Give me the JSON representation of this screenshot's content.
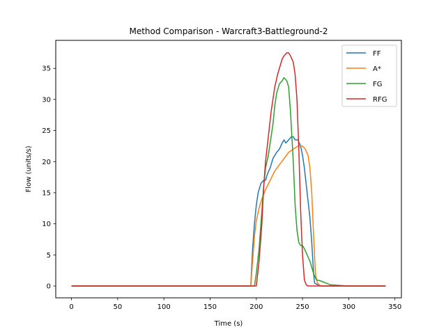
{
  "chart_data": {
    "type": "line",
    "title": "Method Comparison - Warcraft3-Battleground-2",
    "xlabel": "Time (s)",
    "ylabel": "Flow (units/s)",
    "xlim": [
      -17,
      357
    ],
    "ylim": [
      -1.9,
      39.5
    ],
    "xticks": [
      0,
      50,
      100,
      150,
      200,
      250,
      300,
      350
    ],
    "yticks": [
      0,
      5,
      10,
      15,
      20,
      25,
      30,
      35
    ],
    "grid": false,
    "legend_position": "top-right",
    "series": [
      {
        "name": "FF",
        "color": "#1f77b4",
        "x": [
          0,
          194,
          196,
          198,
          200,
          202,
          205,
          208,
          210,
          212,
          215,
          218,
          220,
          222,
          225,
          228,
          230,
          232,
          235,
          238,
          240,
          242,
          245,
          248,
          250,
          252,
          255,
          258,
          260,
          262,
          263,
          265,
          268,
          270,
          300,
          340
        ],
        "y": [
          0,
          0,
          6,
          10,
          13,
          15,
          16.5,
          17,
          17,
          18,
          19,
          20.5,
          21,
          21.5,
          22,
          23,
          23.5,
          23,
          23.5,
          24,
          24,
          23.5,
          23.5,
          22.5,
          21,
          19,
          15,
          11,
          7,
          2,
          0.5,
          0.3,
          0.1,
          0,
          0,
          0
        ]
      },
      {
        "name": "A*",
        "color": "#ff7f0e",
        "x": [
          0,
          194,
          196,
          198,
          200,
          203,
          206,
          210,
          215,
          220,
          225,
          230,
          235,
          240,
          245,
          250,
          253,
          256,
          258,
          260,
          262,
          264,
          266,
          268,
          270,
          280,
          300,
          340
        ],
        "y": [
          0,
          0,
          4,
          8,
          10.5,
          12.5,
          14,
          15.5,
          17,
          18.5,
          19.5,
          20.5,
          21.5,
          22,
          22.5,
          22.5,
          22,
          21,
          19,
          15,
          8,
          2,
          0.5,
          0.2,
          0,
          0,
          0,
          0
        ]
      },
      {
        "name": "FG",
        "color": "#2ca02c",
        "x": [
          0,
          198,
          200,
          203,
          206,
          208,
          210,
          213,
          216,
          218,
          220,
          222,
          225,
          228,
          230,
          233,
          235,
          237,
          240,
          242,
          244,
          246,
          248,
          250,
          252,
          255,
          258,
          260,
          262,
          265,
          270,
          275,
          280,
          290,
          300,
          340
        ],
        "y": [
          0,
          0,
          2,
          6,
          12,
          16,
          19,
          21,
          24,
          26,
          29,
          31,
          32.5,
          33,
          33.5,
          33,
          32,
          28,
          20,
          13,
          9,
          7,
          6.5,
          6.5,
          6,
          5,
          4,
          3,
          2,
          1,
          0.8,
          0.5,
          0.2,
          0.1,
          0,
          0
        ]
      },
      {
        "name": "RFG",
        "color": "#d62728",
        "x": [
          0,
          200,
          203,
          206,
          208,
          210,
          213,
          216,
          218,
          220,
          223,
          226,
          228,
          230,
          233,
          235,
          237,
          240,
          242,
          244,
          246,
          248,
          250,
          252,
          254,
          256,
          260,
          300,
          340
        ],
        "y": [
          0,
          0,
          4,
          10,
          16,
          20,
          24,
          28,
          30,
          32,
          34,
          35.5,
          36.5,
          37,
          37.5,
          37.5,
          37,
          36,
          34,
          30,
          22,
          12,
          5,
          1,
          0.2,
          0,
          0,
          0,
          0
        ]
      }
    ]
  }
}
